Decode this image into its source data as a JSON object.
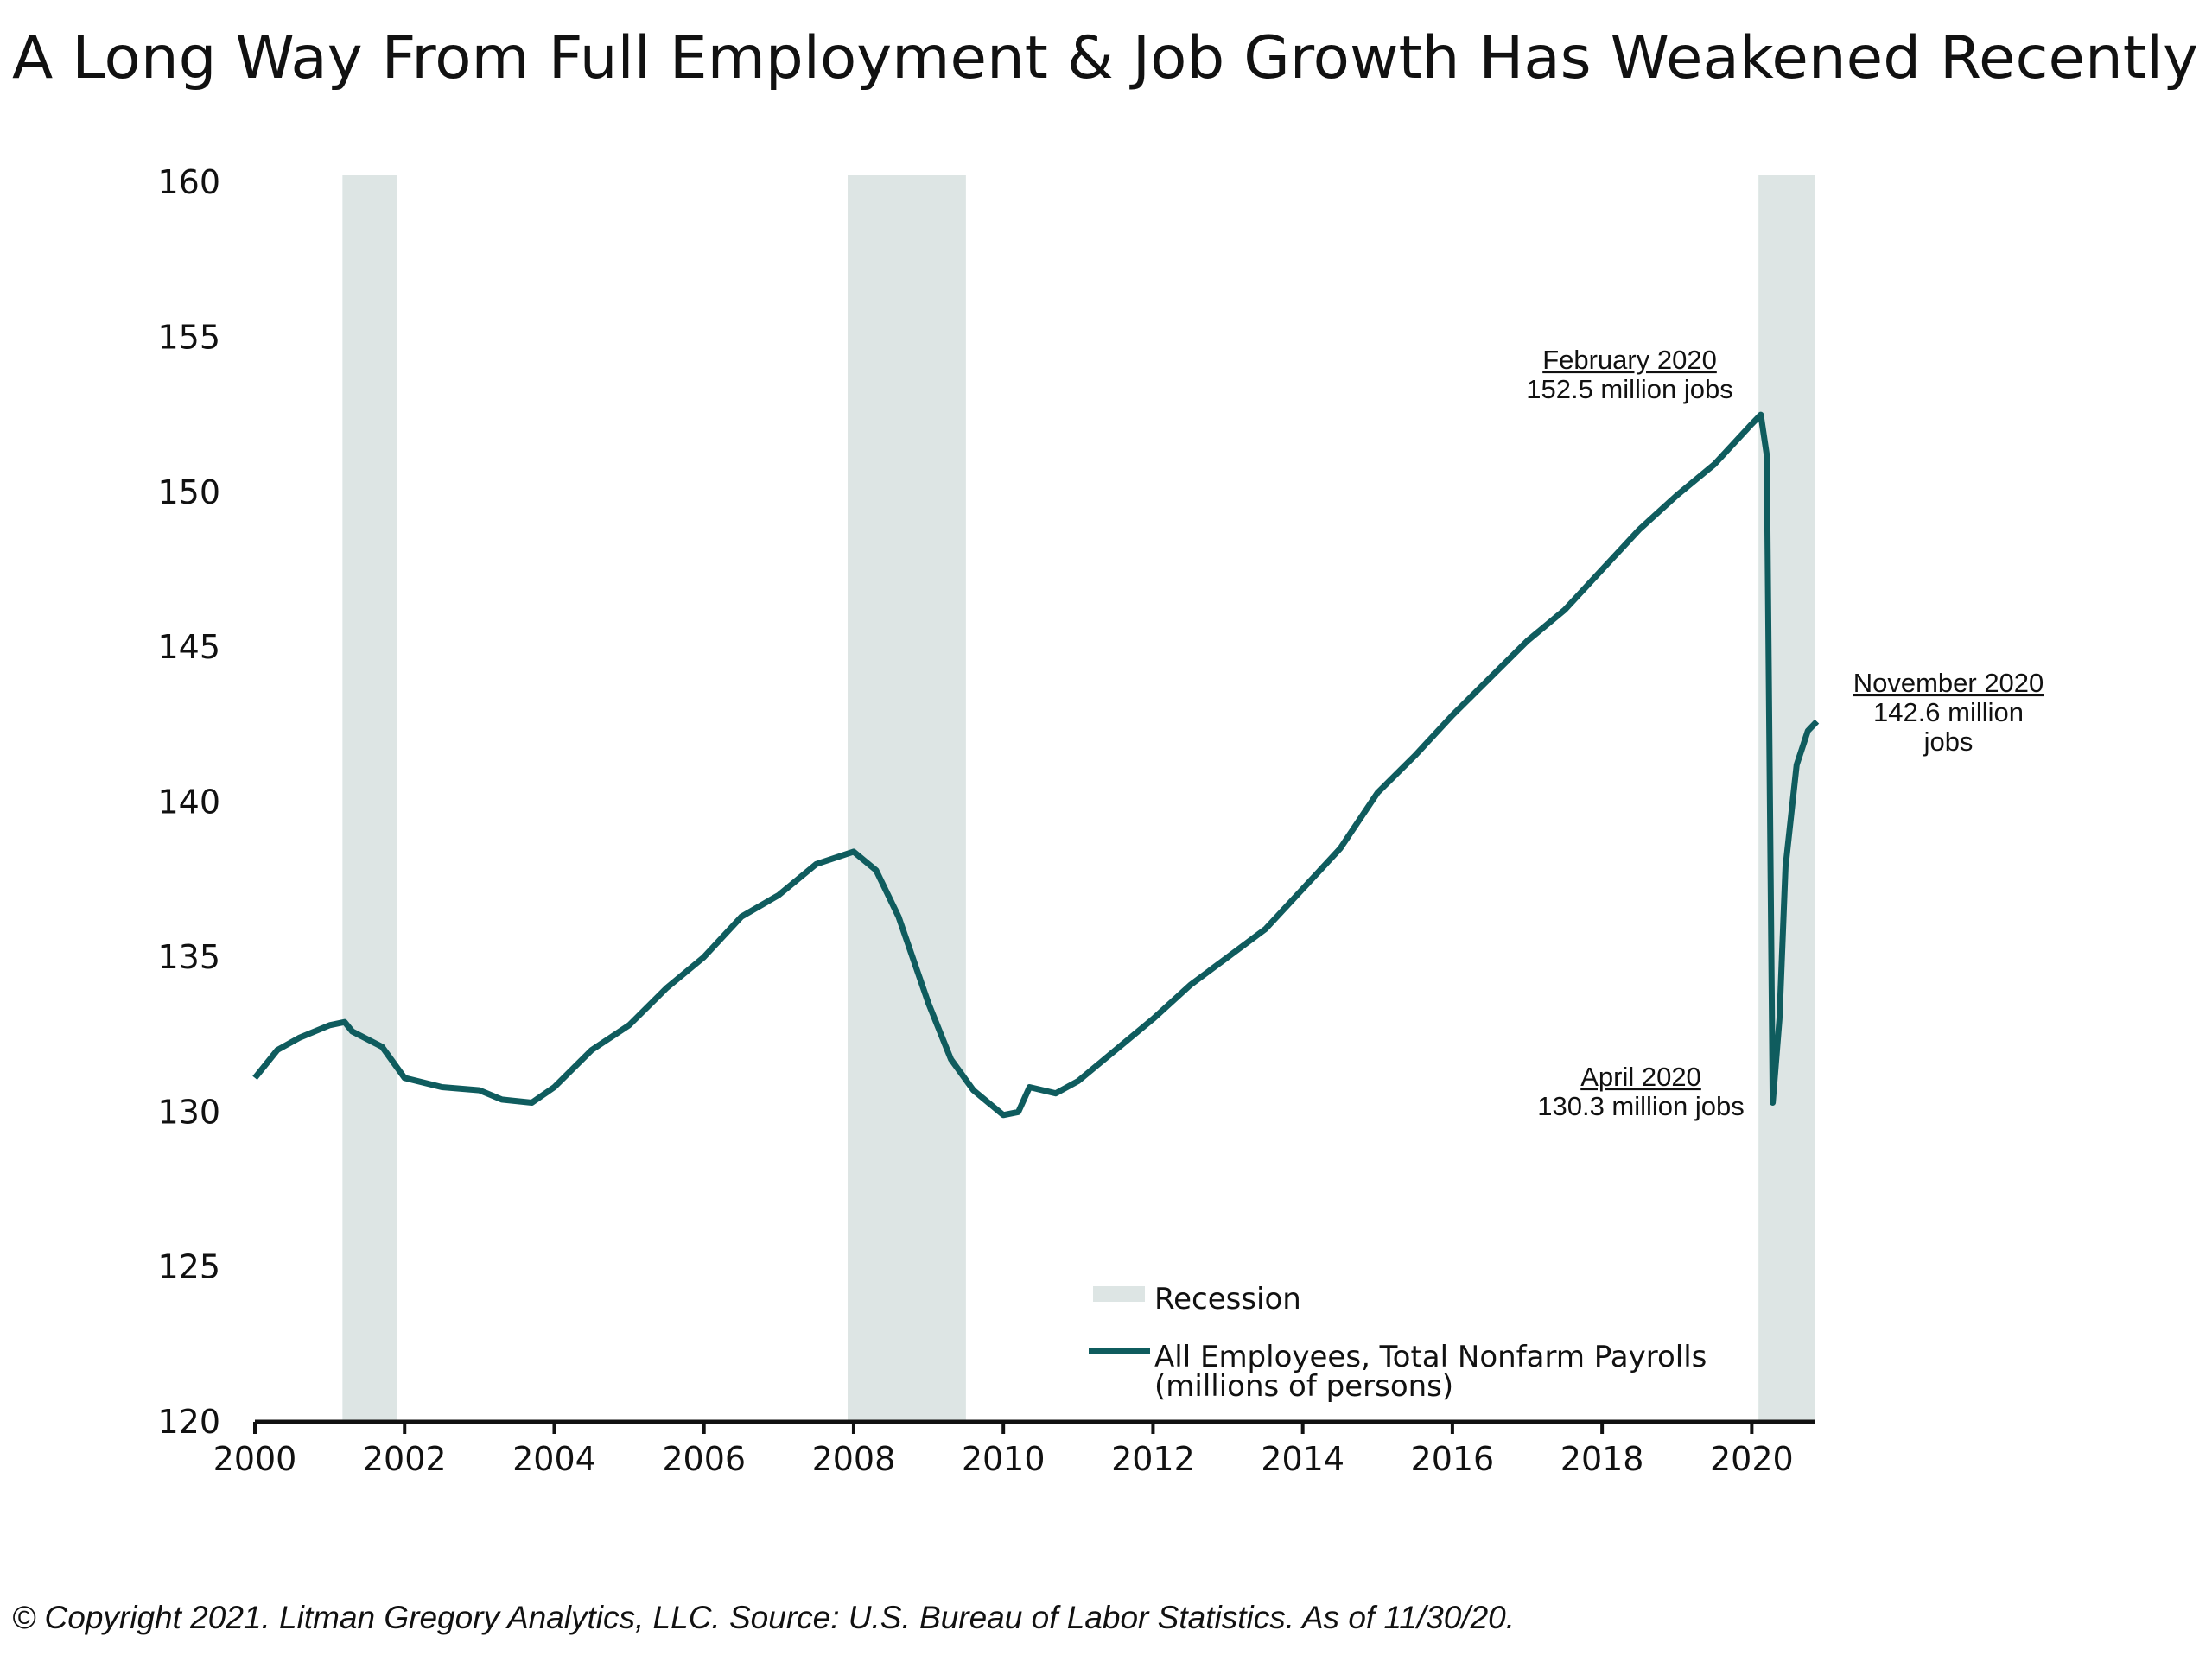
{
  "chart_data": {
    "type": "line",
    "title": "A Long Way From Full Employment & Job Growth Has Weakened Recently",
    "footer": "© Copyright 2021. Litman Gregory Analytics, LLC. Source: U.S. Bureau of Labor Statistics. As of 11/30/20.",
    "xlim": [
      2000,
      2020.85
    ],
    "xticks": [
      2000,
      2002,
      2004,
      2006,
      2008,
      2010,
      2012,
      2014,
      2016,
      2018,
      2020
    ],
    "ylim": [
      120,
      160
    ],
    "yticks": [
      120,
      125,
      130,
      135,
      140,
      145,
      150,
      155,
      160
    ],
    "recession_label": "Recession",
    "recession_color": "#dde5e4",
    "recessions": [
      [
        2001.17,
        2001.9
      ],
      [
        2007.92,
        2009.5
      ],
      [
        2020.09,
        2020.84
      ]
    ],
    "unit_label": "(millions of persons)",
    "series": [
      {
        "name": "All Employees, Total Nonfarm Payrolls",
        "color": "#0f5c5e",
        "x": [
          2000.0,
          2000.3,
          2000.6,
          2001.0,
          2001.2,
          2001.3,
          2001.7,
          2002.0,
          2002.5,
          2003.0,
          2003.3,
          2003.7,
          2004.0,
          2004.5,
          2005.0,
          2005.5,
          2006.0,
          2006.5,
          2007.0,
          2007.5,
          2008.0,
          2008.3,
          2008.6,
          2009.0,
          2009.3,
          2009.6,
          2010.0,
          2010.2,
          2010.35,
          2010.7,
          2011.0,
          2011.5,
          2012.0,
          2012.5,
          2013.0,
          2013.5,
          2014.0,
          2014.5,
          2015.0,
          2015.5,
          2016.0,
          2016.5,
          2017.0,
          2017.5,
          2018.0,
          2018.5,
          2019.0,
          2019.5,
          2020.0,
          2020.12,
          2020.2,
          2020.28,
          2020.37,
          2020.45,
          2020.6,
          2020.75,
          2020.87
        ],
        "values": [
          131.1,
          132.0,
          132.4,
          132.8,
          132.9,
          132.6,
          132.1,
          131.1,
          130.8,
          130.7,
          130.4,
          130.3,
          130.8,
          132.0,
          132.8,
          134.0,
          135.0,
          136.3,
          137.0,
          138.0,
          138.4,
          137.8,
          136.3,
          133.5,
          131.7,
          130.7,
          129.9,
          130.0,
          130.8,
          130.6,
          131.0,
          132.0,
          133.0,
          134.1,
          135.0,
          135.9,
          137.2,
          138.5,
          140.3,
          141.5,
          142.8,
          144.0,
          145.2,
          146.2,
          147.5,
          148.8,
          149.9,
          150.9,
          152.2,
          152.5,
          151.2,
          130.3,
          133.0,
          137.9,
          141.2,
          142.3,
          142.6
        ]
      }
    ],
    "annotations": [
      {
        "lines": [
          "February 2020",
          "152.5 million jobs"
        ]
      },
      {
        "lines": [
          "November 2020",
          "142.6 million",
          "jobs"
        ]
      },
      {
        "lines": [
          "April 2020",
          "130.3 million jobs"
        ]
      }
    ]
  }
}
